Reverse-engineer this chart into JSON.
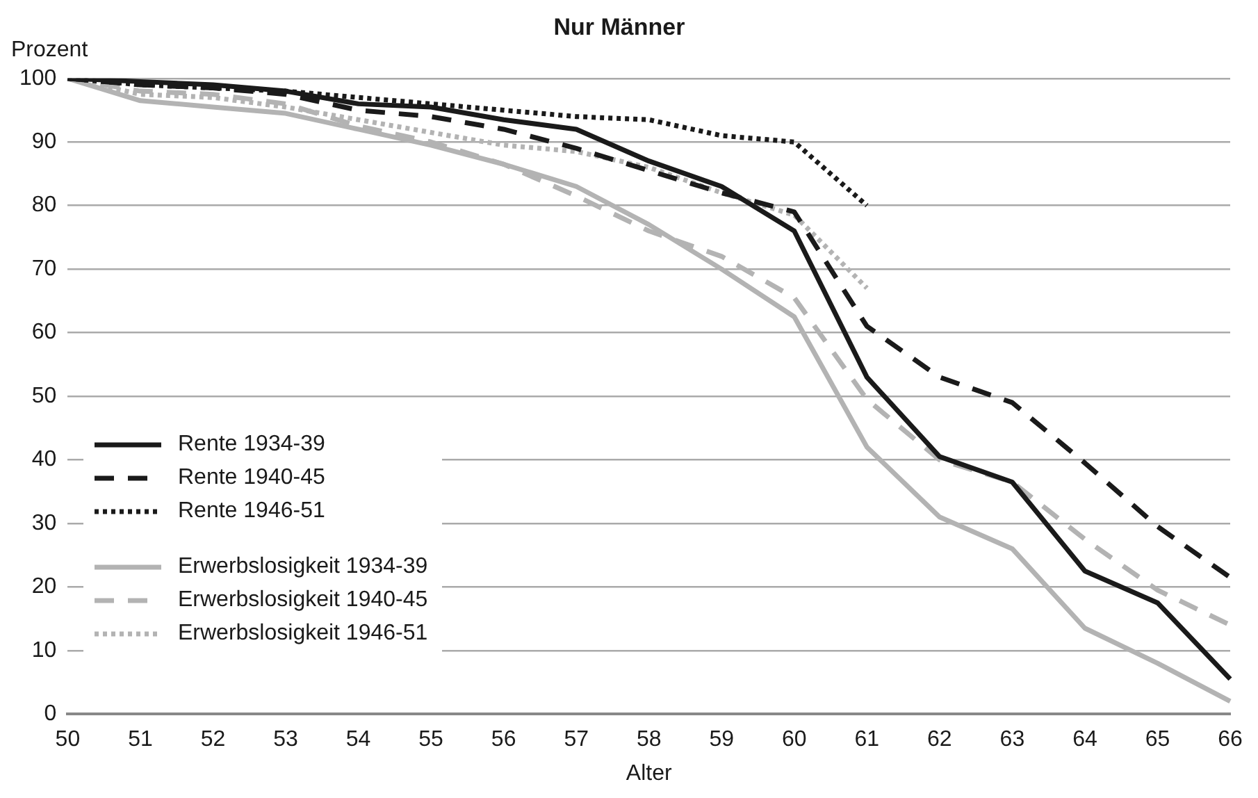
{
  "chart_data": {
    "type": "line",
    "title": "Nur Männer",
    "xlabel": "Alter",
    "ylabel": "Prozent",
    "categories": [
      "50",
      "51",
      "52",
      "53",
      "54",
      "55",
      "56",
      "57",
      "58",
      "59",
      "60",
      "61",
      "62",
      "63",
      "64",
      "65",
      "66"
    ],
    "ylim": [
      0,
      100
    ],
    "yticks": [
      0,
      10,
      20,
      30,
      40,
      50,
      60,
      70,
      80,
      90,
      100
    ],
    "grid": "y",
    "legend": "bottom left",
    "marker": "none",
    "series": [
      {
        "name": "Rente 1934-39",
        "color": "#1a1a1a",
        "line_style": "solid",
        "values": [
          100,
          99.5,
          99,
          98,
          96,
          95.5,
          93.5,
          92,
          87,
          83,
          76,
          53,
          40.5,
          36.5,
          22.5,
          17.5,
          5.5
        ]
      },
      {
        "name": "Rente 1940-45",
        "color": "#1a1a1a",
        "line_style": "dashed",
        "values": [
          100,
          99,
          98.5,
          97.5,
          95,
          94,
          92,
          89,
          85.5,
          82,
          79,
          61,
          53,
          49,
          39.5,
          29.5,
          21.5
        ]
      },
      {
        "name": "Rente 1946-51",
        "color": "#1a1a1a",
        "line_style": "dotted",
        "values": [
          100,
          99,
          98.5,
          98,
          97,
          96,
          95,
          94,
          93.5,
          91,
          90,
          80,
          null,
          null,
          null,
          null,
          null
        ]
      },
      {
        "name": "Erwerbslosigkeit 1934-39",
        "color": "#b3b3b3",
        "line_style": "solid",
        "values": [
          100,
          96.5,
          95.5,
          94.5,
          92,
          89.5,
          86.5,
          83,
          77,
          70,
          62.5,
          42,
          31,
          26,
          13.5,
          8,
          2
        ]
      },
      {
        "name": "Erwerbslosigkeit 1940-45",
        "color": "#b3b3b3",
        "line_style": "dashed",
        "values": [
          100,
          98,
          97.5,
          96,
          92.5,
          90,
          86.5,
          81.5,
          76,
          72,
          65.5,
          49.5,
          40,
          36.5,
          27.5,
          19.5,
          14
        ]
      },
      {
        "name": "Erwerbslosigkeit 1946-51",
        "color": "#b3b3b3",
        "line_style": "dotted",
        "values": [
          100,
          97.5,
          97,
          95.5,
          93.5,
          91.5,
          89.5,
          88.5,
          86,
          82,
          78.5,
          67,
          null,
          null,
          null,
          null,
          null
        ]
      }
    ]
  }
}
